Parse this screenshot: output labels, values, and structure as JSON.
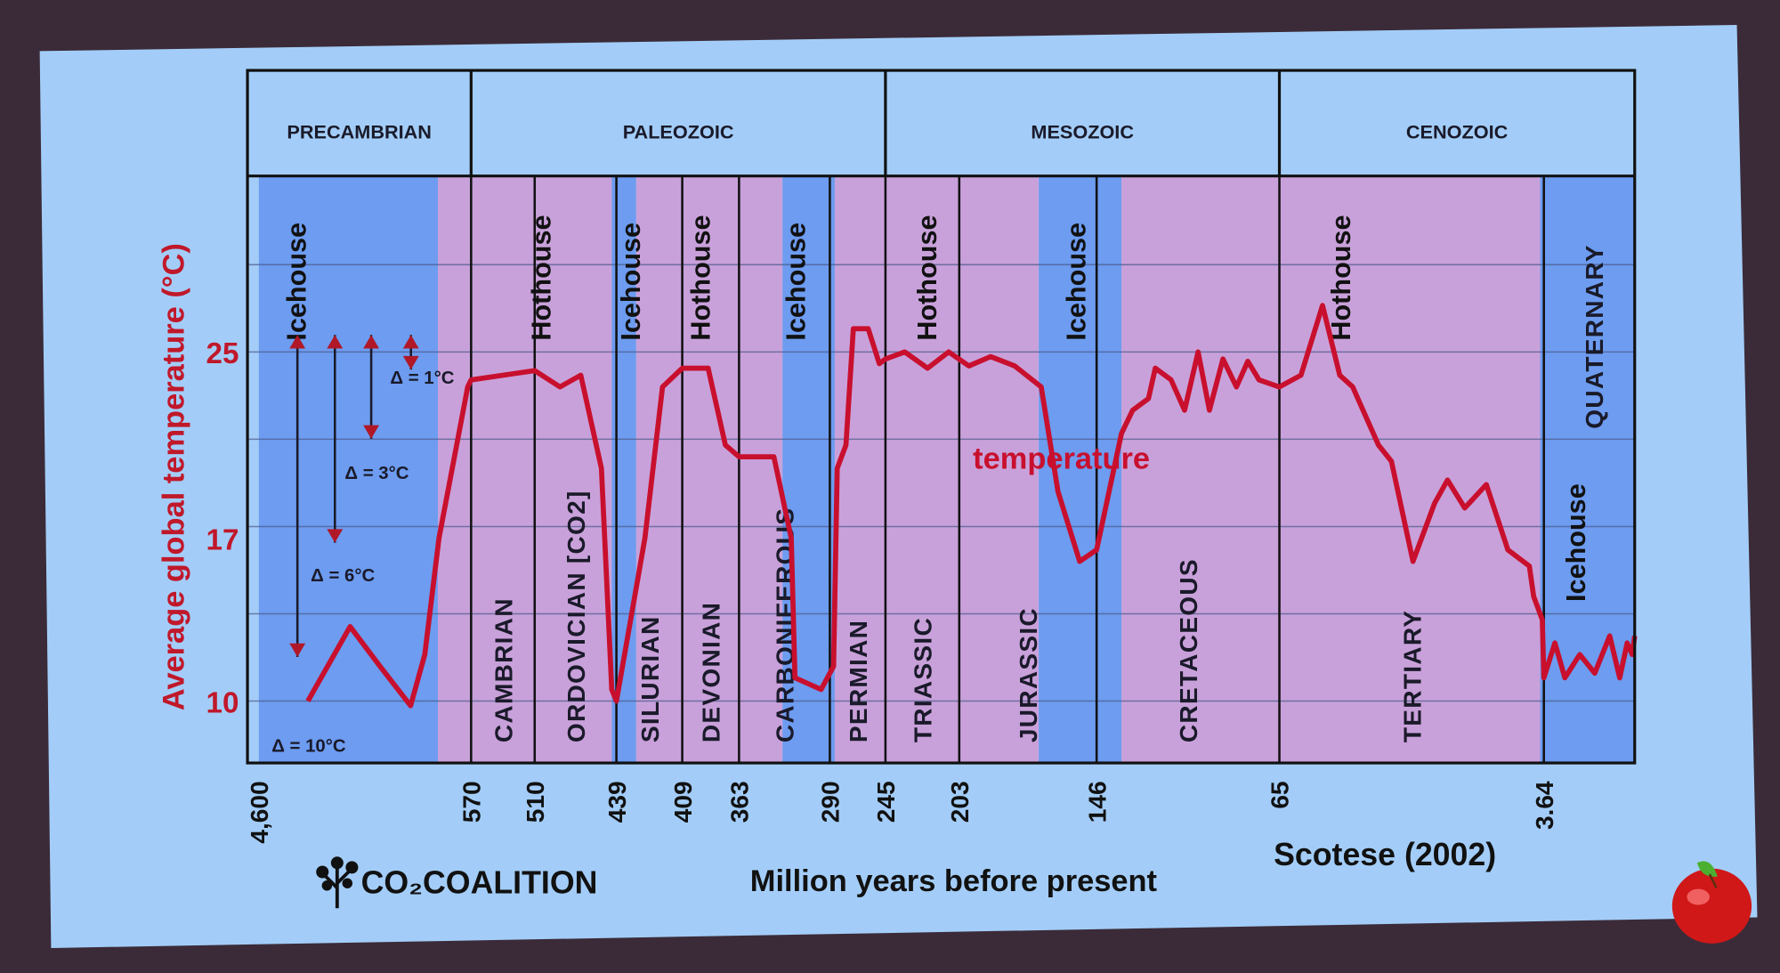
{
  "chart_data": {
    "type": "line",
    "title": "",
    "xlabel": "Million years before present",
    "ylabel": "Average global temperature (°C)",
    "citation": "Scotese (2002)",
    "x_ticks": [
      "4,600",
      "570",
      "510",
      "439",
      "409",
      "363",
      "290",
      "245",
      "203",
      "146",
      "65",
      "3.64"
    ],
    "x_tick_values": [
      4600,
      570,
      510,
      439,
      409,
      363,
      290,
      245,
      203,
      146,
      65,
      3.64
    ],
    "y_ticks": [
      "25",
      "17",
      "10"
    ],
    "y_tick_values": [
      25,
      17,
      10
    ],
    "x_axis_reversed": true,
    "grid": true,
    "series": [
      {
        "name": "temperature",
        "color": "#c8102e",
        "x": [
          3668,
          2867,
          2300,
          1718,
          1450,
          1180,
          635,
          570,
          510,
          488,
          470,
          452,
          443,
          439,
          426,
          418,
          409,
          388,
          374,
          363,
          335,
          321,
          318,
          297,
          287,
          284,
          277,
          271,
          259,
          250,
          245,
          234,
          221,
          209,
          199,
          190,
          180,
          169,
          162,
          153,
          146,
          135,
          130,
          123,
          120,
          113,
          107,
          101,
          96,
          90,
          84,
          79,
          74,
          65,
          60,
          55,
          51,
          48,
          42,
          39,
          34,
          29,
          26,
          22,
          17,
          12,
          7,
          6,
          4,
          3.64,
          3.2,
          2.8,
          2.2,
          1.6,
          1.0,
          0.6,
          0.3,
          0.1,
          0
        ],
        "y": [
          10,
          13.2,
          11.5,
          9.8,
          12,
          17,
          23.5,
          23.8,
          24.2,
          23.5,
          24,
          20,
          10.5,
          10,
          17,
          23.5,
          24.3,
          24.3,
          21,
          20.5,
          20.5,
          17,
          11,
          10.5,
          11.5,
          20,
          21,
          26,
          26,
          24.5,
          24.7,
          25,
          24.3,
          25,
          24.4,
          24.8,
          24.4,
          23.5,
          19,
          16,
          16.5,
          21.5,
          22.5,
          23,
          24.3,
          23.8,
          22.5,
          25,
          22.5,
          24.7,
          23.5,
          24.6,
          23.8,
          23.5,
          24,
          27,
          24,
          23.5,
          21,
          20.3,
          16,
          18.5,
          19.5,
          18.3,
          19.3,
          16.5,
          15.8,
          14.5,
          13.5,
          11,
          12.5,
          11,
          12,
          11.2,
          12.8,
          11,
          12.5,
          12,
          12.8
        ]
      }
    ],
    "series_label": "temperature",
    "eras": [
      {
        "label": "PRECAMBRIAN",
        "from": 4600,
        "to": 570
      },
      {
        "label": "PALEOZOIC",
        "from": 570,
        "to": 245
      },
      {
        "label": "MESOZOIC",
        "from": 245,
        "to": 65
      },
      {
        "label": "CENOZOIC",
        "from": 65,
        "to": 0
      }
    ],
    "periods": [
      {
        "label": "CAMBRIAN",
        "from": 570,
        "to": 510
      },
      {
        "label": "ORDOVICIAN [CO2]",
        "from": 510,
        "to": 439
      },
      {
        "label": "SILURIAN",
        "from": 439,
        "to": 409
      },
      {
        "label": "DEVONIAN",
        "from": 409,
        "to": 363
      },
      {
        "label": "CARBONIFEROUS",
        "from": 363,
        "to": 290
      },
      {
        "label": "PERMIAN",
        "from": 290,
        "to": 245
      },
      {
        "label": "TRIASSIC",
        "from": 245,
        "to": 203
      },
      {
        "label": "JURASSIC",
        "from": 203,
        "to": 146
      },
      {
        "label": "CRETACEOUS",
        "from": 146,
        "to": 65
      },
      {
        "label": "TERTIARY",
        "from": 65,
        "to": 3.64
      },
      {
        "label": "QUATERNARY",
        "from": 3.64,
        "to": 0
      }
    ],
    "climate_bands": [
      {
        "label": "Icehouse",
        "from": 4600,
        "to": 1200,
        "type": "ice"
      },
      {
        "label": "Hothouse",
        "from": 1200,
        "to": 443,
        "type": "hot"
      },
      {
        "label": "Icehouse",
        "from": 443,
        "to": 430,
        "type": "ice"
      },
      {
        "label": "Hothouse",
        "from": 430,
        "to": 328,
        "type": "hot"
      },
      {
        "label": "Icehouse",
        "from": 328,
        "to": 286,
        "type": "ice"
      },
      {
        "label": "Hothouse",
        "from": 286,
        "to": 170,
        "type": "hot"
      },
      {
        "label": "Icehouse",
        "from": 170,
        "to": 135,
        "type": "ice"
      },
      {
        "label": "Hothouse",
        "from": 135,
        "to": 4.5,
        "type": "hot"
      },
      {
        "label": "Icehouse",
        "from": 4.5,
        "to": 0,
        "type": "ice"
      }
    ],
    "climate_labels": [
      {
        "label": "Icehouse",
        "at": 3900
      },
      {
        "label": "Hothouse",
        "at": 505
      },
      {
        "label": "Icehouse",
        "at": 433
      },
      {
        "label": "Hothouse",
        "at": 395
      },
      {
        "label": "Icehouse",
        "at": 318
      },
      {
        "label": "Hothouse",
        "at": 222
      },
      {
        "label": "Icehouse",
        "at": 155
      },
      {
        "label": "Hothouse",
        "at": 51
      },
      {
        "label": "Icehouse",
        "at": 2.4
      }
    ],
    "annotations": [
      {
        "label": "Δ = 1°C",
        "delta": 1
      },
      {
        "label": "Δ = 3°C",
        "delta": 3
      },
      {
        "label": "Δ = 6°C",
        "delta": 6
      },
      {
        "label": "Δ = 10°C",
        "delta": 10
      }
    ],
    "colors": {
      "icehouse": "#6d9cf0",
      "hothouse": "#c9a1da",
      "curve": "#c8102e",
      "screen": "#a3cdf8"
    }
  },
  "logo": {
    "text": "CO₂COALITION",
    "icon": "tree-icon"
  },
  "corner_icon": "apple-icon"
}
